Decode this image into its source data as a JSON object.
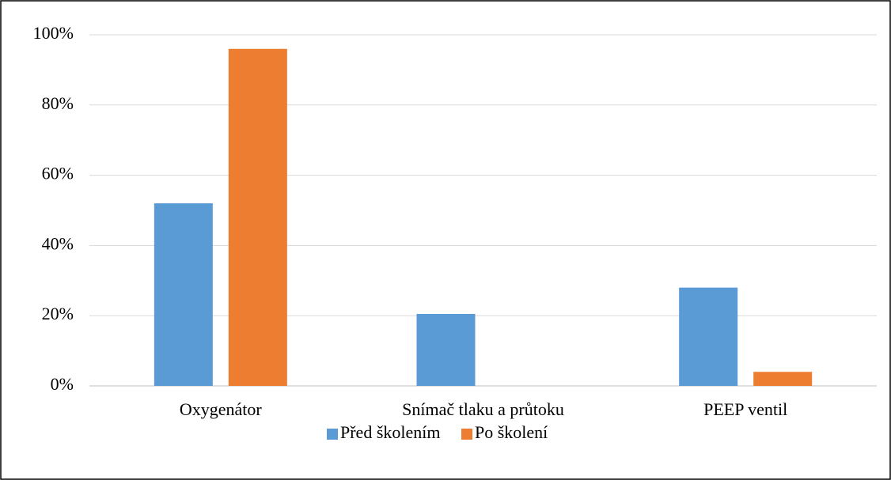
{
  "chart_data": {
    "type": "bar",
    "categories": [
      "Oxygenátor",
      "Snímač tlaku a průtoku",
      "PEEP ventil"
    ],
    "series": [
      {
        "name": "Před školením",
        "color": "#5b9bd5",
        "values": [
          52,
          20.5,
          28
        ]
      },
      {
        "name": "Po školení",
        "color": "#ed7d31",
        "values": [
          96,
          0,
          4
        ]
      }
    ],
    "ylim": [
      0,
      100
    ],
    "yticks": [
      {
        "value": 0,
        "label": "0%"
      },
      {
        "value": 20,
        "label": "20%"
      },
      {
        "value": 40,
        "label": "40%"
      },
      {
        "value": 60,
        "label": "60%"
      },
      {
        "value": 80,
        "label": "80%"
      },
      {
        "value": 100,
        "label": "100%"
      }
    ],
    "grid": true,
    "legend": "bottom"
  }
}
